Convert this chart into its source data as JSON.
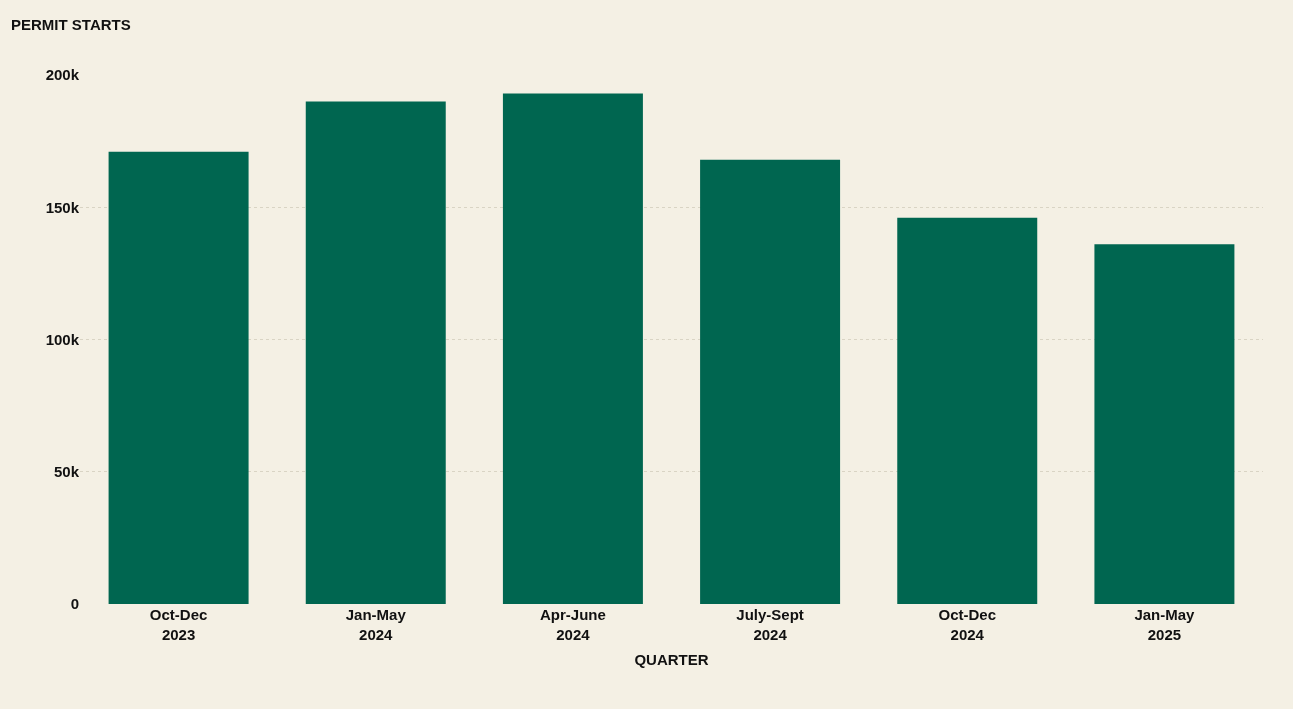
{
  "chart_data": {
    "type": "bar",
    "ylabel": "PERMIT STARTS",
    "xlabel": "QUARTER",
    "categories": [
      "Oct-Dec 2023",
      "Jan-May 2024",
      "Apr-June 2024",
      "July-Sept 2024",
      "Oct-Dec 2024",
      "Jan-May 2025"
    ],
    "values": [
      171000,
      190000,
      193000,
      168000,
      146000,
      136000
    ],
    "color": "#006650",
    "ylim": [
      0,
      200000
    ],
    "yticks": [
      {
        "value": 0,
        "label": "0"
      },
      {
        "value": 50000,
        "label": "50k"
      },
      {
        "value": 100000,
        "label": "100k"
      },
      {
        "value": 150000,
        "label": "150k"
      },
      {
        "value": 200000,
        "label": "200k"
      }
    ],
    "grid": "y"
  }
}
